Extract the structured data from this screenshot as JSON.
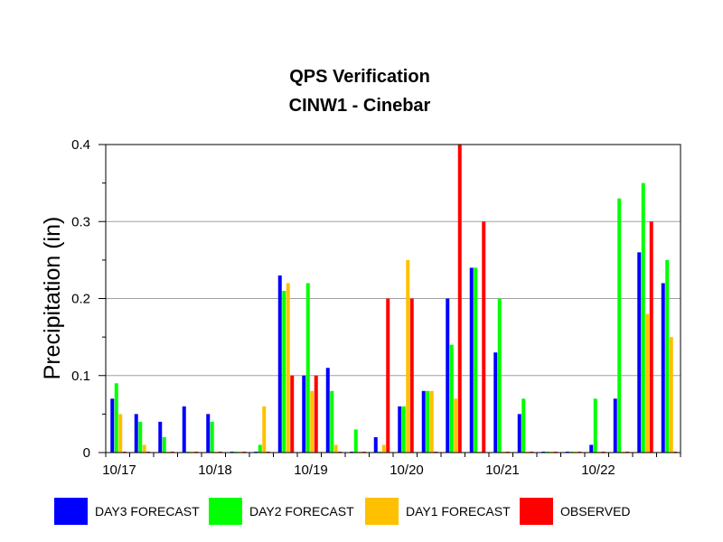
{
  "chart_data": {
    "type": "bar",
    "title_line1": "QPS Verification",
    "title_line2": "CINW1 - Cinebar",
    "ylabel": "Precipitation (in)",
    "ylim": [
      0,
      0.4
    ],
    "y_ticks": [
      0,
      0.1,
      0.2,
      0.3,
      0.4
    ],
    "y_tick_labels": [
      "0",
      "0.1",
      "0.2",
      "0.3",
      "0.4"
    ],
    "x_tick_labels": [
      "10/17",
      "10/18",
      "10/19",
      "10/20",
      "10/21",
      "10/22"
    ],
    "x_tick_period_index": [
      0,
      4,
      8,
      12,
      16,
      20
    ],
    "grid": true,
    "legend_position": "bottom",
    "periods": 24,
    "series": [
      {
        "name": "DAY3 FORECAST",
        "color": "#0000ff",
        "values": [
          0.07,
          0.05,
          0.04,
          0.06,
          0.05,
          0.0,
          0.0,
          0.23,
          0.1,
          0.11,
          0.0,
          0.02,
          0.06,
          0.08,
          0.2,
          0.24,
          0.13,
          0.05,
          0.0,
          0.0,
          0.01,
          0.07,
          0.26,
          0.22
        ]
      },
      {
        "name": "DAY2 FORECAST",
        "color": "#00ff00",
        "values": [
          0.09,
          0.04,
          0.02,
          0.0,
          0.04,
          0.0,
          0.01,
          0.21,
          0.22,
          0.08,
          0.03,
          0.0,
          0.06,
          0.08,
          0.14,
          0.24,
          0.2,
          0.07,
          0.0,
          0.0,
          0.07,
          0.33,
          0.35,
          0.25
        ]
      },
      {
        "name": "DAY1 FORECAST",
        "color": "#ffc000",
        "values": [
          0.05,
          0.01,
          0.0,
          0.0,
          0.0,
          0.0,
          0.06,
          0.22,
          0.08,
          0.01,
          0.0,
          0.01,
          0.25,
          0.08,
          0.07,
          0.0,
          0.0,
          0.0,
          0.0,
          0.0,
          0.0,
          0.0,
          0.18,
          0.15
        ]
      },
      {
        "name": "OBSERVED",
        "color": "#ff0000",
        "values": [
          0.0,
          0.0,
          0.0,
          0.0,
          0.0,
          0.0,
          0.0,
          0.1,
          0.1,
          0.0,
          0.0,
          0.2,
          0.2,
          0.0,
          0.4,
          0.3,
          0.0,
          0.0,
          0.0,
          0.0,
          0.0,
          0.0,
          0.3,
          0.0
        ]
      }
    ]
  }
}
